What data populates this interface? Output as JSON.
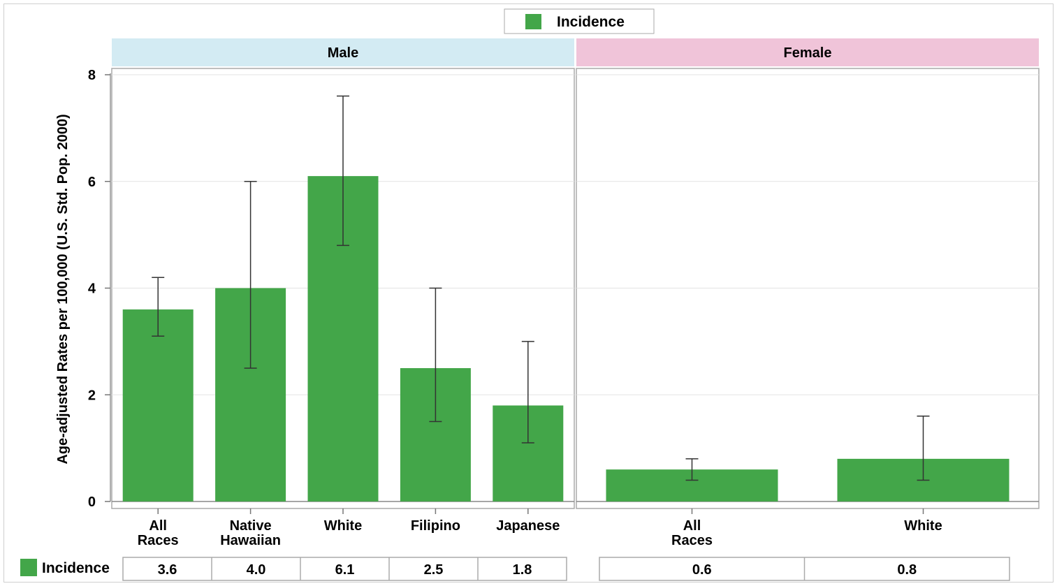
{
  "chart_data": {
    "type": "bar",
    "legend": {
      "label": "Incidence",
      "color": "#43a649"
    },
    "ylabel": "Age-adjusted Rates per 100,000 (U.S. Std. Pop. 2000)",
    "ylim": [
      0,
      8
    ],
    "yticks": [
      0,
      2,
      4,
      6,
      8
    ],
    "grid": true,
    "legend_position": "top-center",
    "panels": [
      {
        "title": "Male",
        "header_color": "#d3ebf3",
        "categories": [
          [
            "All",
            "Races"
          ],
          [
            "Native",
            "Hawaiian"
          ],
          [
            "White"
          ],
          [
            "Filipino"
          ],
          [
            "Japanese"
          ]
        ],
        "values": [
          3.6,
          4.0,
          6.1,
          2.5,
          1.8
        ],
        "table_values": [
          "3.6",
          "4.0",
          "6.1",
          "2.5",
          "1.8"
        ],
        "ci_lower": [
          3.1,
          2.5,
          4.8,
          1.5,
          1.1
        ],
        "ci_upper": [
          4.2,
          6.0,
          7.6,
          4.0,
          3.0
        ]
      },
      {
        "title": "Female",
        "header_color": "#f0c4d9",
        "categories": [
          [
            "All",
            "Races"
          ],
          [
            "White"
          ]
        ],
        "values": [
          0.6,
          0.8
        ],
        "table_values": [
          "0.6",
          "0.8"
        ],
        "ci_lower": [
          0.4,
          0.4
        ],
        "ci_upper": [
          0.8,
          1.6
        ]
      }
    ],
    "table_row_label": "Incidence"
  }
}
